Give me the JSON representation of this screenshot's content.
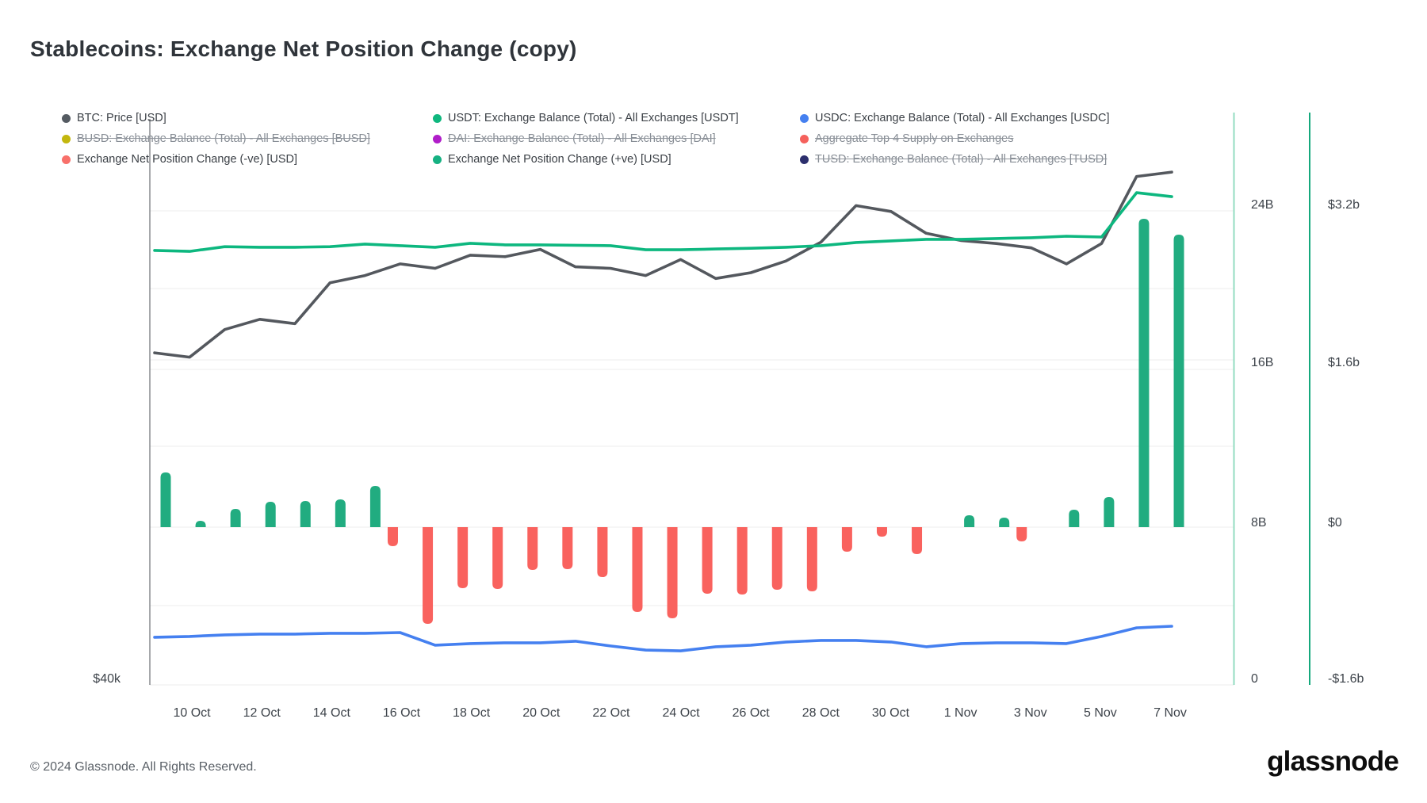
{
  "title": "Stablecoins: Exchange Net Position Change (copy)",
  "legend": {
    "items": [
      {
        "id": "btc-price",
        "label": "BTC: Price [USD]",
        "color": "#555b62",
        "struck": false
      },
      {
        "id": "usdt-balance",
        "label": "USDT: Exchange Balance (Total) - All Exchanges [USDT]",
        "color": "#0fb77e",
        "struck": false
      },
      {
        "id": "usdc-balance",
        "label": "USDC: Exchange Balance (Total) - All Exchanges [USDC]",
        "color": "#4580f0",
        "struck": false
      },
      {
        "id": "busd-balance",
        "label": "BUSD: Exchange Balance (Total) - All Exchanges [BUSD]",
        "color": "#c3b70e",
        "struck": true
      },
      {
        "id": "dai-balance",
        "label": "DAI: Exchange Balance (Total) - All Exchanges [DAI]",
        "color": "#b01dc9",
        "struck": true
      },
      {
        "id": "aggregate-top4-supply",
        "label": "Aggregate Top 4 Supply on Exchanges",
        "color": "#f5615c",
        "struck": true
      },
      {
        "id": "net-position-negative",
        "label": "Exchange Net Position Change (-ve) [USD]",
        "color": "#f8706a",
        "struck": false
      },
      {
        "id": "net-position-positive",
        "label": "Exchange Net Position Change (+ve) [USD]",
        "color": "#16b182",
        "struck": false
      },
      {
        "id": "tusd-balance",
        "label": "TUSD: Exchange Balance (Total) - All Exchanges [TUSD]",
        "color": "#2c2f6d",
        "struck": true
      }
    ]
  },
  "axes": {
    "left_price_label": "$40k",
    "right_balance_ticks": [
      {
        "label": "24B",
        "value": 24
      },
      {
        "label": "16B",
        "value": 16
      },
      {
        "label": "8B",
        "value": 8
      },
      {
        "label": "0",
        "value": 0
      }
    ],
    "right_net_ticks": [
      {
        "label": "$3.2b",
        "value": 3200
      },
      {
        "label": "$1.6b",
        "value": 1600
      },
      {
        "label": "$0",
        "value": 0
      },
      {
        "label": "-$1.6b",
        "value": -1600
      }
    ],
    "x_tick_labels": [
      "10 Oct",
      "12 Oct",
      "14 Oct",
      "16 Oct",
      "18 Oct",
      "20 Oct",
      "22 Oct",
      "24 Oct",
      "26 Oct",
      "28 Oct",
      "30 Oct",
      "1 Nov",
      "3 Nov",
      "5 Nov",
      "7 Nov"
    ],
    "x_tick_day_indices": [
      1,
      3,
      5,
      7,
      9,
      11,
      13,
      15,
      17,
      19,
      21,
      23,
      25,
      27,
      29
    ]
  },
  "chart_data": {
    "type": "combo",
    "x": [
      "9 Oct",
      "10 Oct",
      "11 Oct",
      "12 Oct",
      "13 Oct",
      "14 Oct",
      "15 Oct",
      "16 Oct",
      "17 Oct",
      "18 Oct",
      "19 Oct",
      "20 Oct",
      "21 Oct",
      "22 Oct",
      "23 Oct",
      "24 Oct",
      "25 Oct",
      "26 Oct",
      "27 Oct",
      "28 Oct",
      "29 Oct",
      "30 Oct",
      "31 Oct",
      "1 Nov",
      "2 Nov",
      "3 Nov",
      "4 Nov",
      "5 Nov",
      "6 Nov",
      "7 Nov"
    ],
    "axes_info": {
      "left_price_usd": {
        "bottom_label": "$40k",
        "range": [
          40000,
          79000
        ]
      },
      "right_balance_b": {
        "ticks": [
          "24B",
          "16B",
          "8B",
          "0"
        ],
        "range": [
          0,
          28.7
        ]
      },
      "right_net_usd": {
        "ticks": [
          "$3.2b",
          "$1.6b",
          "$0",
          "-$1.6b"
        ],
        "range_musd": [
          -1600,
          3200
        ]
      },
      "grid": "horizontal-light"
    },
    "series": [
      {
        "name": "BTC: Price [USD]",
        "type": "line",
        "axis": "price_usd",
        "color": "#54585e",
        "values": [
          62300,
          62000,
          63900,
          64600,
          64300,
          67100,
          67600,
          68400,
          68100,
          69000,
          68900,
          69400,
          68200,
          68100,
          67600,
          68700,
          67400,
          67800,
          68600,
          69900,
          72400,
          72000,
          70500,
          70000,
          69800,
          69500,
          68400,
          69800,
          74400,
          74700
        ]
      },
      {
        "name": "USDT: Exchange Balance (Total) - All Exchanges [USDT]",
        "type": "line",
        "axis": "balance_b",
        "color": "#0db77f",
        "values": [
          21.64,
          21.59,
          21.83,
          21.8,
          21.8,
          21.83,
          21.96,
          21.88,
          21.8,
          22.0,
          21.92,
          21.92,
          21.9,
          21.88,
          21.67,
          21.67,
          21.71,
          21.75,
          21.8,
          21.88,
          22.04,
          22.12,
          22.2,
          22.2,
          22.24,
          22.28,
          22.36,
          22.32,
          24.56,
          24.36
        ]
      },
      {
        "name": "USDC: Exchange Balance (Total) - All Exchanges [USDC]",
        "type": "line",
        "axis": "balance_b",
        "color": "#4580f0",
        "values": [
          2.05,
          2.09,
          2.17,
          2.21,
          2.21,
          2.25,
          2.25,
          2.29,
          1.65,
          1.73,
          1.77,
          1.77,
          1.85,
          1.61,
          1.4,
          1.36,
          1.57,
          1.65,
          1.81,
          1.89,
          1.89,
          1.81,
          1.57,
          1.73,
          1.77,
          1.77,
          1.73,
          2.09,
          2.53,
          2.61
        ]
      },
      {
        "name": "Exchange Net Position Change (+ve) [USD]",
        "type": "bar",
        "axis": "net_usd_musd",
        "color": "#21ac80",
        "values": [
          555,
          64,
          185,
          257,
          265,
          281,
          418,
          0,
          0,
          0,
          0,
          0,
          0,
          0,
          0,
          0,
          0,
          0,
          0,
          0,
          0,
          0,
          0,
          121,
          96,
          0,
          177,
          306,
          3128,
          2967
        ]
      },
      {
        "name": "Exchange Net Position Change (-ve) [USD]",
        "type": "bar",
        "axis": "net_usd_musd",
        "color": "#f9625e",
        "values": [
          0,
          0,
          0,
          0,
          0,
          0,
          0,
          -193,
          -981,
          -619,
          -627,
          -434,
          -426,
          -507,
          -860,
          -925,
          -675,
          -683,
          -635,
          -651,
          -249,
          -96,
          -273,
          0,
          0,
          -145,
          0,
          0,
          0,
          0
        ]
      }
    ]
  },
  "footer": {
    "copyright": "© 2024 Glassnode. All Rights Reserved.",
    "brand": "glassnode"
  }
}
